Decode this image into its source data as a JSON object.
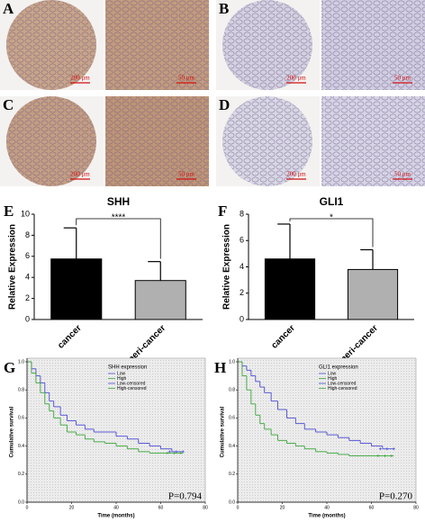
{
  "image_panels": [
    {
      "label": "A",
      "scale_bars": [
        "200 μm",
        "50 μm"
      ],
      "color": "#b98a66"
    },
    {
      "label": "B",
      "scale_bars": [
        "200 μm",
        "50 μm"
      ],
      "color": "#c9c6dc"
    },
    {
      "label": "C",
      "scale_bars": [
        "200 μm",
        "50 μm"
      ],
      "color": "#b4825e"
    },
    {
      "label": "D",
      "scale_bars": [
        "200 μm",
        "50 μm"
      ],
      "color": "#cfcde0"
    }
  ],
  "chart_data": [
    {
      "type": "bar",
      "panel_label": "E",
      "title": "SHH",
      "ylabel": "Relative Expression",
      "categories": [
        "cancer",
        "peri-cancer"
      ],
      "values": [
        5.75,
        3.7
      ],
      "errors": [
        2.95,
        1.8
      ],
      "colors": [
        "#000000",
        "#b0b0b0"
      ],
      "ylim": [
        0,
        10
      ],
      "yticks": [
        0,
        2,
        4,
        6,
        8,
        10
      ],
      "annotation": "****"
    },
    {
      "type": "bar",
      "panel_label": "F",
      "title": "GLI1",
      "ylabel": "Relative Expression",
      "categories": [
        "cancer",
        "peri-cancer"
      ],
      "values": [
        4.6,
        3.8
      ],
      "errors": [
        2.65,
        1.5
      ],
      "colors": [
        "#000000",
        "#b0b0b0"
      ],
      "ylim": [
        0,
        8
      ],
      "yticks": [
        0,
        2,
        4,
        6,
        8
      ],
      "annotation": "*"
    },
    {
      "type": "km",
      "panel_label": "G",
      "legend_title": "SHH expression",
      "ylabel": "Cumulative survival",
      "xlabel": "Time (months)",
      "xlim": [
        0,
        80
      ],
      "xticks": [
        0,
        20,
        40,
        60,
        80
      ],
      "ylim": [
        0,
        1
      ],
      "yticks": [
        {
          "value": 0,
          "label": "0.0"
        },
        {
          "value": 0.2,
          "label": "0.2"
        },
        {
          "value": 0.4,
          "label": "0.4"
        },
        {
          "value": 0.6,
          "label": "0.6"
        },
        {
          "value": 0.8,
          "label": "0.8"
        },
        {
          "value": 1,
          "label": "1.0"
        }
      ],
      "series": [
        {
          "name": "Low",
          "color": "#4a4ad6",
          "x": [
            0,
            2,
            4,
            6,
            8,
            10,
            12,
            15,
            18,
            22,
            26,
            30,
            35,
            40,
            45,
            50,
            55,
            60,
            65,
            70
          ],
          "values": [
            1,
            0.95,
            0.9,
            0.85,
            0.78,
            0.72,
            0.68,
            0.62,
            0.58,
            0.55,
            0.52,
            0.5,
            0.5,
            0.47,
            0.45,
            0.42,
            0.4,
            0.38,
            0.36,
            0.36
          ]
        },
        {
          "name": "High",
          "color": "#3aa83a",
          "x": [
            0,
            2,
            4,
            6,
            8,
            10,
            12,
            15,
            18,
            22,
            26,
            30,
            35,
            40,
            45,
            50,
            55,
            60,
            65,
            70
          ],
          "values": [
            1,
            0.92,
            0.85,
            0.78,
            0.7,
            0.65,
            0.6,
            0.55,
            0.5,
            0.48,
            0.45,
            0.43,
            0.42,
            0.4,
            0.38,
            0.36,
            0.35,
            0.35,
            0.35,
            0.35
          ]
        },
        {
          "name": "Low-censored",
          "color": "#4a4ad6",
          "x": [
            64,
            67,
            70
          ],
          "values": [
            0.36,
            0.36,
            0.36
          ]
        },
        {
          "name": "High-censored",
          "color": "#3aa83a",
          "x": [
            63,
            66,
            69
          ],
          "values": [
            0.35,
            0.35,
            0.35
          ]
        }
      ],
      "annotation": "P=0.794"
    },
    {
      "type": "km",
      "panel_label": "H",
      "legend_title": "GLI1 expression",
      "ylabel": "Cumulative survival",
      "xlabel": "Time (months)",
      "xlim": [
        0,
        80
      ],
      "xticks": [
        0,
        20,
        40,
        60,
        80
      ],
      "ylim": [
        0,
        1
      ],
      "yticks": [
        {
          "value": 0,
          "label": "0.0"
        },
        {
          "value": 0.2,
          "label": "0.2"
        },
        {
          "value": 0.4,
          "label": "0.4"
        },
        {
          "value": 0.6,
          "label": "0.6"
        },
        {
          "value": 0.8,
          "label": "0.8"
        },
        {
          "value": 1,
          "label": "1.0"
        }
      ],
      "series": [
        {
          "name": "Low",
          "color": "#4a4ad6",
          "x": [
            0,
            2,
            4,
            6,
            8,
            10,
            12,
            15,
            18,
            22,
            26,
            30,
            35,
            40,
            45,
            50,
            55,
            60,
            65,
            70
          ],
          "values": [
            1,
            0.97,
            0.94,
            0.9,
            0.86,
            0.82,
            0.78,
            0.72,
            0.66,
            0.6,
            0.56,
            0.52,
            0.5,
            0.48,
            0.46,
            0.44,
            0.42,
            0.4,
            0.38,
            0.38
          ]
        },
        {
          "name": "High",
          "color": "#3aa83a",
          "x": [
            0,
            2,
            4,
            6,
            8,
            10,
            12,
            15,
            18,
            22,
            26,
            30,
            35,
            40,
            45,
            50,
            55,
            60,
            65,
            70
          ],
          "values": [
            1,
            0.9,
            0.8,
            0.7,
            0.62,
            0.56,
            0.52,
            0.48,
            0.44,
            0.42,
            0.4,
            0.38,
            0.36,
            0.35,
            0.34,
            0.33,
            0.33,
            0.33,
            0.33,
            0.33
          ]
        },
        {
          "name": "Low-censored",
          "color": "#4a4ad6",
          "x": [
            64,
            67,
            70
          ],
          "values": [
            0.38,
            0.38,
            0.38
          ]
        },
        {
          "name": "High-censored",
          "color": "#3aa83a",
          "x": [
            63,
            66,
            69
          ],
          "values": [
            0.33,
            0.33,
            0.33
          ]
        }
      ],
      "annotation": "P=0.270"
    }
  ]
}
